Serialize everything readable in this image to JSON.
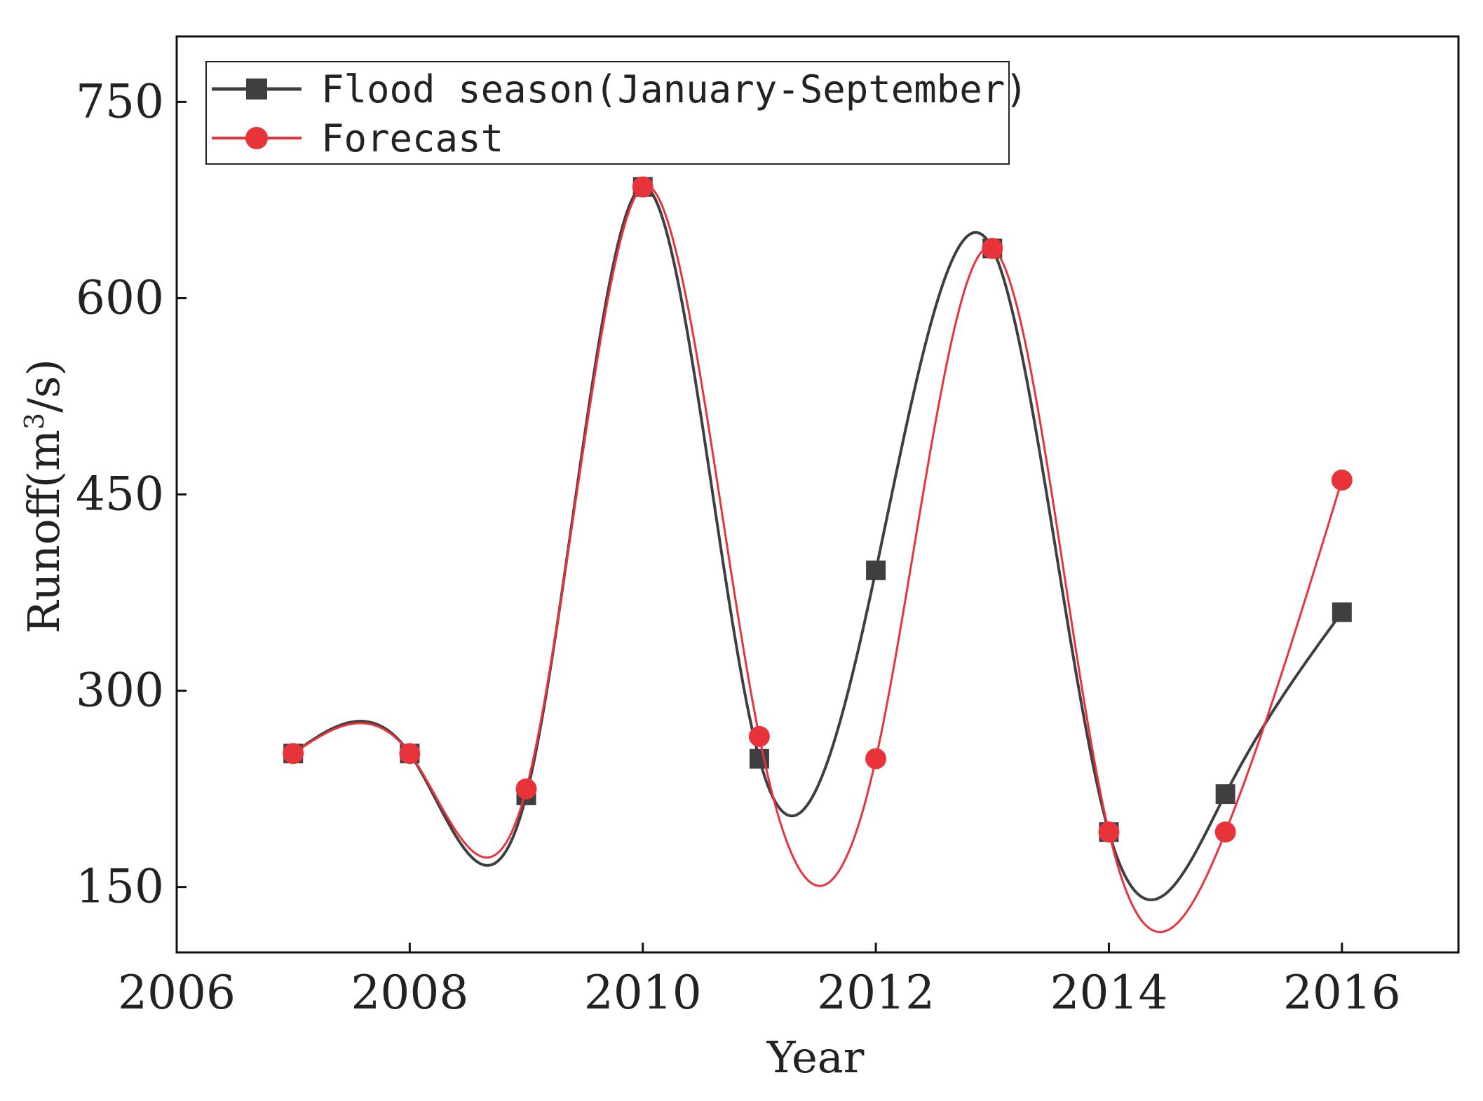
{
  "chart_data": {
    "type": "line",
    "title": "",
    "xlabel": "Year",
    "ylabel": {
      "prefix": "Runoff(m",
      "superscript": "3",
      "suffix": "/s)"
    },
    "xlim": [
      2006,
      2017
    ],
    "ylim": [
      100,
      800
    ],
    "x_ticks": [
      "2006",
      "2008",
      "2010",
      "2012",
      "2014",
      "2016"
    ],
    "y_ticks": [
      "150",
      "300",
      "450",
      "600",
      "750"
    ],
    "x": [
      2007,
      2008,
      2009,
      2010,
      2011,
      2012,
      2013,
      2014,
      2015,
      2016
    ],
    "series": [
      {
        "name": "Flood season(January-September)",
        "color": "#3f3f3f",
        "marker": "square",
        "values": [
          252,
          252,
          220,
          685,
          248,
          392,
          638,
          192,
          221,
          360
        ]
      },
      {
        "name": "Forecast",
        "color": "#e8333b",
        "marker": "circle",
        "values": [
          252,
          252,
          225,
          685,
          265,
          248,
          638,
          192,
          192,
          461
        ]
      }
    ],
    "legend_position": "top-left",
    "grid": false
  }
}
